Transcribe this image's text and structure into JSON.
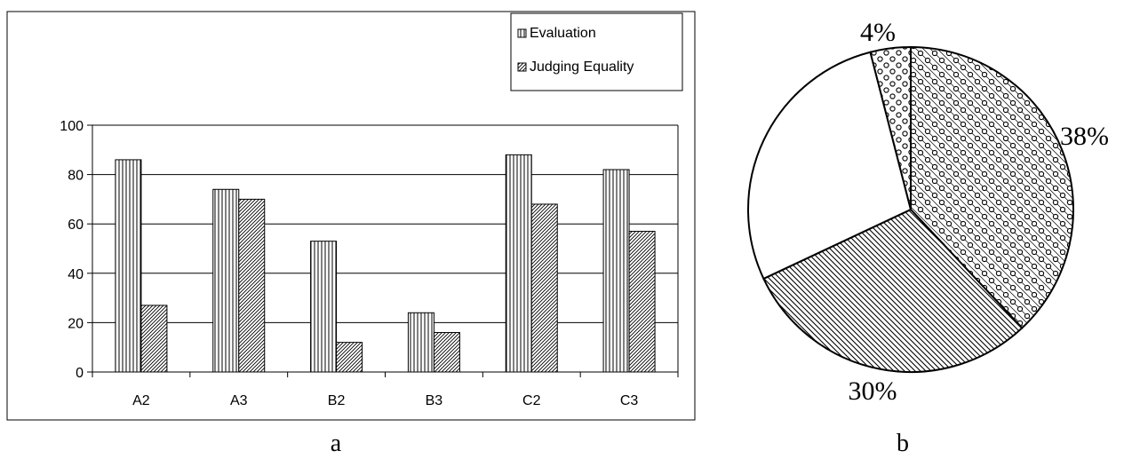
{
  "panels": {
    "a": {
      "caption": "a"
    },
    "b": {
      "caption": "b"
    }
  },
  "chart_data": [
    {
      "type": "bar",
      "title": "",
      "xlabel": "",
      "ylabel": "",
      "categories": [
        "A2",
        "A3",
        "B2",
        "B3",
        "C2",
        "C3"
      ],
      "ylim": [
        0,
        100
      ],
      "yticks": [
        0,
        20,
        40,
        60,
        80,
        100
      ],
      "grid": "horizontal",
      "legend_position": "top-right",
      "series": [
        {
          "name": "Evaluation",
          "values": [
            86,
            74,
            53,
            24,
            88,
            82
          ],
          "pattern": "vertical-stripes"
        },
        {
          "name": "Judging Equality",
          "values": [
            27,
            70,
            12,
            16,
            68,
            57
          ],
          "pattern": "diagonal-hatch"
        }
      ]
    },
    {
      "type": "pie",
      "slices": [
        {
          "label": "4%",
          "value": 4,
          "pattern": "dots"
        },
        {
          "label": "38%",
          "value": 38,
          "pattern": "dots-on-hatch"
        },
        {
          "label": "30%",
          "value": 30,
          "pattern": "diagonal-hatch"
        },
        {
          "label": "",
          "value": 28,
          "pattern": "blank"
        }
      ]
    }
  ]
}
